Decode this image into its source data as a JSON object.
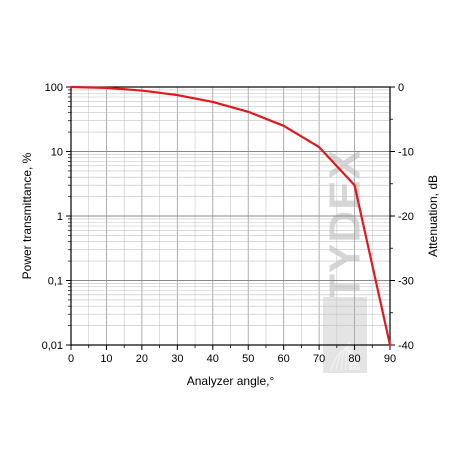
{
  "chart_data": {
    "type": "line",
    "xlabel": "Analyzer angle,°",
    "ylabel": "Power transmittance, %",
    "y2label": "Attenuation, dB",
    "xlim": [
      0,
      90
    ],
    "ylim": [
      0.01,
      100
    ],
    "y_scale": "log",
    "y2lim": [
      -40,
      0
    ],
    "grid": true,
    "x_ticks": [
      "0",
      "10",
      "20",
      "30",
      "40",
      "50",
      "60",
      "70",
      "80",
      "90"
    ],
    "x_tick_values": [
      0,
      10,
      20,
      30,
      40,
      50,
      60,
      70,
      80,
      90
    ],
    "y_ticks": [
      "0,01",
      "0,1",
      "1",
      "10",
      "100"
    ],
    "y_tick_values": [
      0.01,
      0.1,
      1,
      10,
      100
    ],
    "y2_ticks": [
      "-40",
      "-30",
      "-20",
      "-10",
      "0"
    ],
    "y2_tick_values": [
      -40,
      -30,
      -20,
      -10,
      0
    ],
    "series": [
      {
        "color": "#e0191e",
        "x": [
          0,
          10,
          20,
          30,
          40,
          50,
          60,
          70,
          80,
          90
        ],
        "y": [
          100,
          97,
          88,
          75,
          58.7,
          41.3,
          25,
          11.7,
          3.0,
          0.01
        ]
      }
    ],
    "watermark": "TYDEX"
  }
}
